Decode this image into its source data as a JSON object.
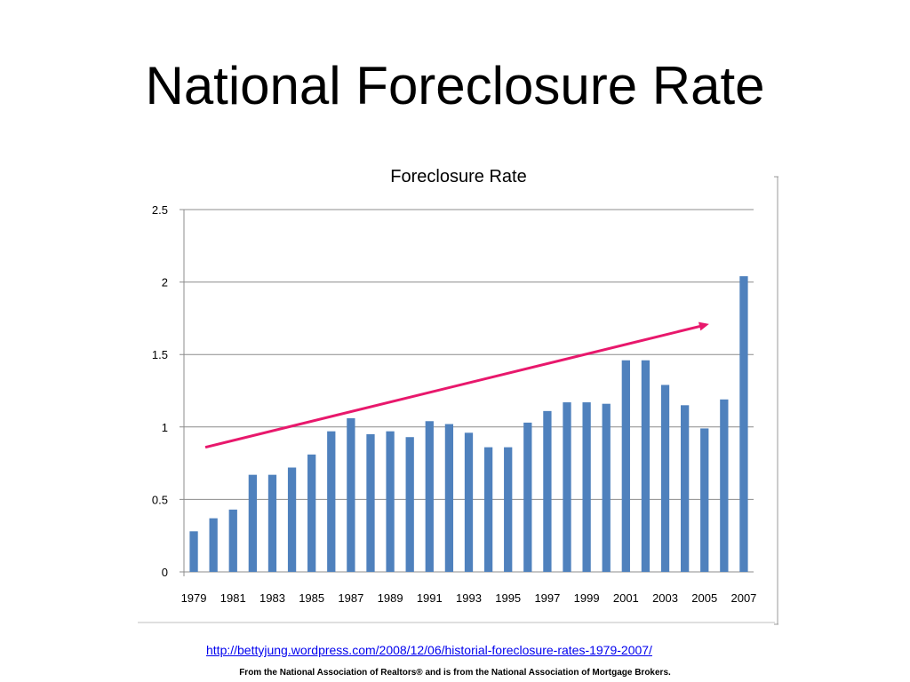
{
  "slide": {
    "title": "National Foreclosure Rate",
    "link": "http://bettyjung.wordpress.com/2008/12/06/historial-foreclosure-rates-1979-2007/",
    "note": "From the National Association of Realtors® and is from the National Association of Mortgage Brokers."
  },
  "chart_data": {
    "type": "bar",
    "title": "Foreclosure Rate",
    "xlabel": "",
    "ylabel": "",
    "ylim": [
      0,
      2.5
    ],
    "yticks": [
      "0",
      "0.5",
      "1",
      "1.5",
      "2",
      "2.5"
    ],
    "categories": [
      "1979",
      "1980",
      "1981",
      "1982",
      "1983",
      "1984",
      "1985",
      "1986",
      "1987",
      "1988",
      "1989",
      "1990",
      "1991",
      "1992",
      "1993",
      "1994",
      "1995",
      "1996",
      "1997",
      "1998",
      "1999",
      "2000",
      "2001",
      "2002",
      "2003",
      "2004",
      "2005",
      "2006",
      "2007"
    ],
    "xtick_labels": [
      "1979",
      "1981",
      "1983",
      "1985",
      "1987",
      "1989",
      "1991",
      "1993",
      "1995",
      "1997",
      "1999",
      "2001",
      "2003",
      "2005",
      "2007"
    ],
    "values": [
      0.28,
      0.37,
      0.43,
      0.67,
      0.67,
      0.72,
      0.81,
      0.97,
      1.06,
      0.95,
      0.97,
      0.93,
      1.04,
      1.02,
      0.96,
      0.86,
      0.86,
      1.03,
      1.11,
      1.17,
      1.17,
      1.16,
      1.46,
      1.46,
      1.29,
      1.15,
      0.99,
      1.19,
      2.04
    ],
    "grid": true,
    "bar_color": "#4f81bd",
    "trend_arrow": {
      "from": [
        "1979",
        0.86
      ],
      "to": [
        "2006",
        1.71
      ],
      "color": "#e8186c"
    }
  }
}
